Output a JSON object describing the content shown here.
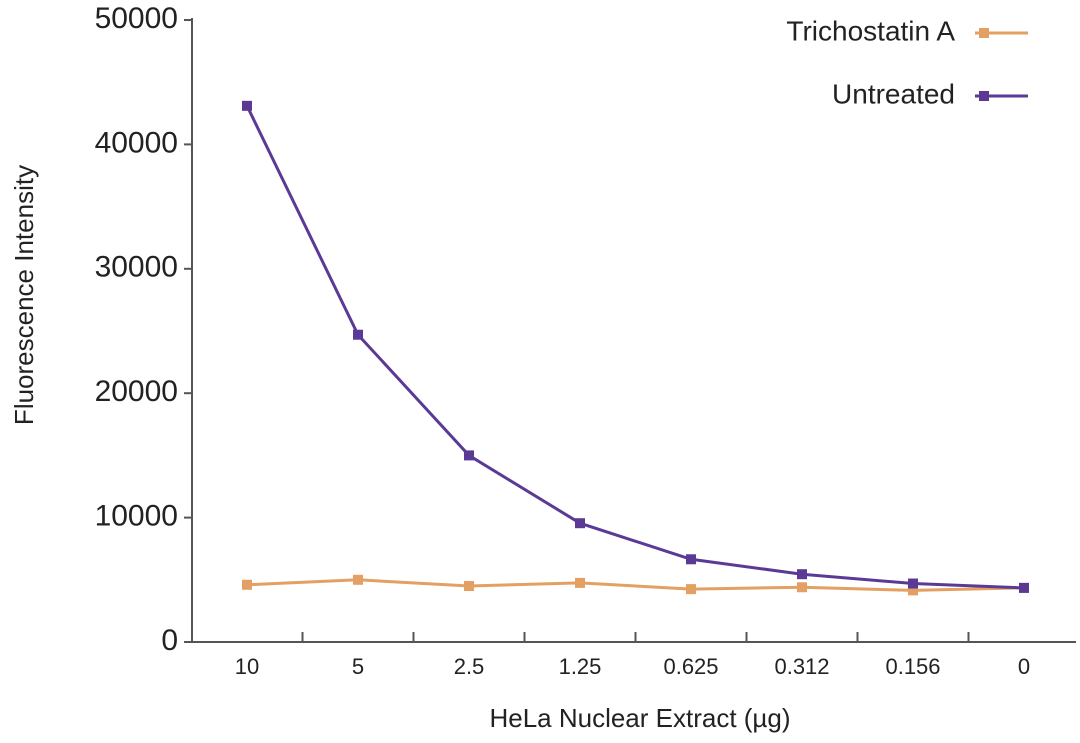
{
  "chart_data": {
    "type": "line",
    "x_label": "HeLa Nuclear Extract (µg)",
    "y_label": "Fluorescence Intensity",
    "categories": [
      "10",
      "5",
      "2.5",
      "1.25",
      "0.625",
      "0.312",
      "0.156",
      "0"
    ],
    "series": [
      {
        "name": "Trichostatin A",
        "color": "#e3a062",
        "values": [
          4600,
          5000,
          4500,
          4750,
          4250,
          4400,
          4150,
          4350
        ]
      },
      {
        "name": "Untreated",
        "color": "#5b3a96",
        "values": [
          43100,
          24700,
          15000,
          9550,
          6650,
          5450,
          4700,
          4350
        ]
      }
    ],
    "ylim": [
      0,
      50000
    ],
    "yticks": [
      0,
      10000,
      20000,
      30000,
      40000,
      50000
    ],
    "legend": "top-right"
  }
}
